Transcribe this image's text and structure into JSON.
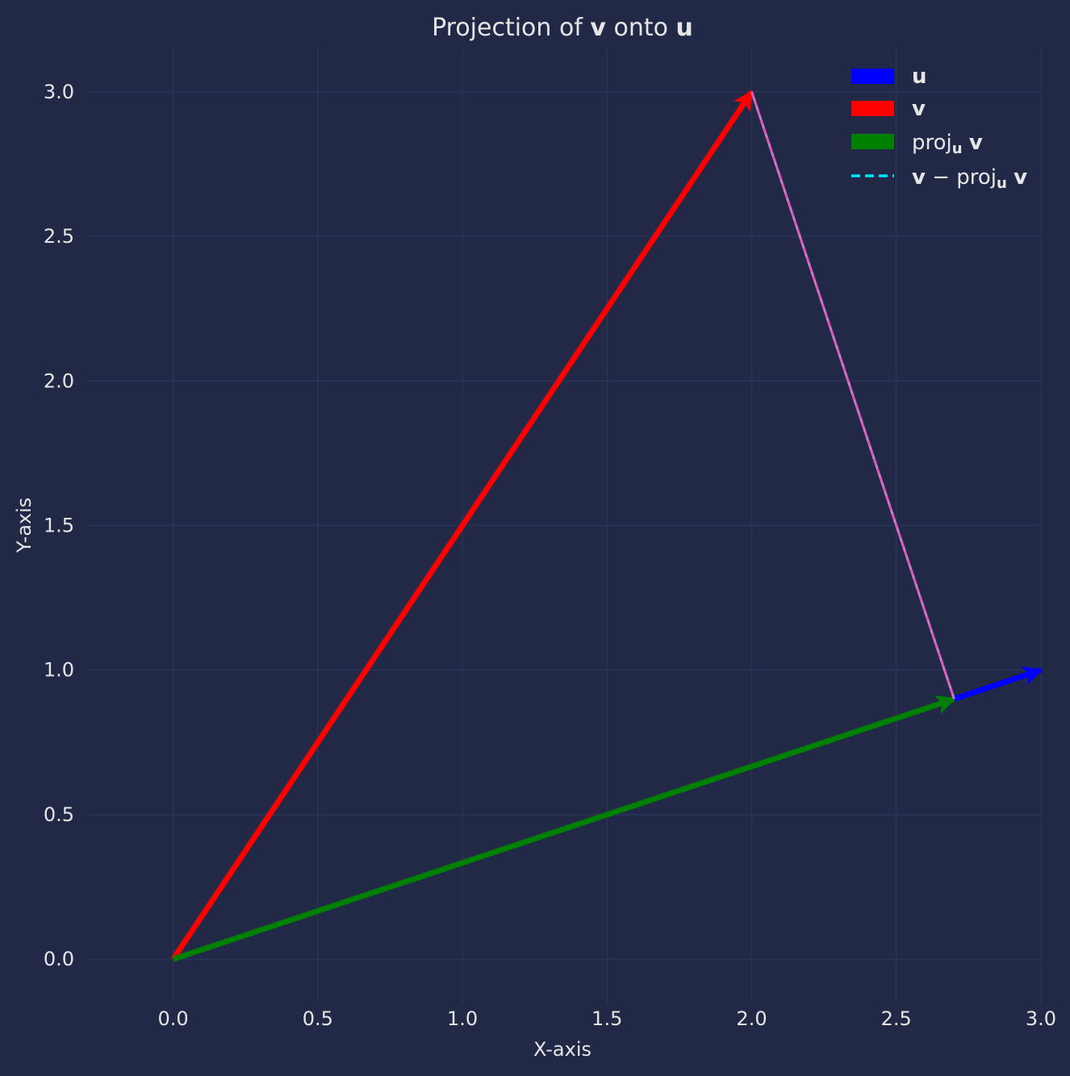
{
  "chart_data": {
    "type": "vector",
    "title": {
      "prefix": "Projection of ",
      "v": "v",
      "middle": " onto ",
      "u": "u"
    },
    "xlabel": "X-axis",
    "ylabel": "Y-axis",
    "xlim": [
      -0.3,
      3.0
    ],
    "ylim": [
      -0.15,
      3.15
    ],
    "xticks": [
      0.0,
      0.5,
      1.0,
      1.5,
      2.0,
      2.5,
      3.0
    ],
    "yticks": [
      0.0,
      0.5,
      1.0,
      1.5,
      2.0,
      2.5,
      3.0
    ],
    "xtick_labels": [
      "0.0",
      "0.5",
      "1.0",
      "1.5",
      "2.0",
      "2.5",
      "3.0"
    ],
    "ytick_labels": [
      "0.0",
      "0.5",
      "1.0",
      "1.5",
      "2.0",
      "2.5",
      "3.0"
    ],
    "grid": true,
    "legend_position": "top-right",
    "vectors": [
      {
        "name": "u",
        "start": [
          0,
          0
        ],
        "end": [
          3,
          1
        ],
        "color": "#0000ff"
      },
      {
        "name": "v",
        "start": [
          0,
          0
        ],
        "end": [
          2,
          3
        ],
        "color": "#ff0000"
      },
      {
        "name": "proj_u v",
        "start": [
          0,
          0
        ],
        "end": [
          2.7,
          0.9
        ],
        "color": "#008000"
      }
    ],
    "residual": {
      "name": "v - proj_u v",
      "start": [
        2,
        3
      ],
      "end": [
        2.7,
        0.9
      ],
      "color": "#00e5ff",
      "overlay_color": "#c77dcc",
      "style": "dashed"
    },
    "legend": {
      "u": "u",
      "v": "v",
      "proj_prefix": "proj",
      "proj_sub": "u",
      "minus": " − ",
      "space": " "
    }
  },
  "colors": {
    "background": "#212946",
    "grid": "#2A3459",
    "text": "#e6e6e6"
  }
}
